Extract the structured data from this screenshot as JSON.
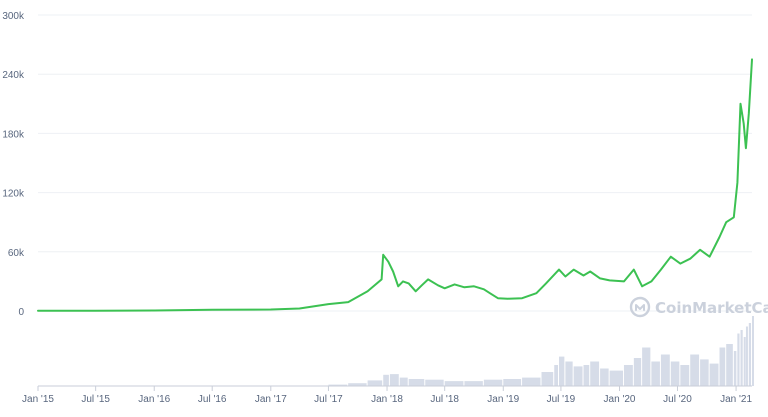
{
  "chart_data": {
    "type": "line",
    "title": "",
    "xlabel": "",
    "ylabel": "",
    "y_ticks": [
      "0",
      "60k",
      "120k",
      "180k",
      "240k",
      "300k"
    ],
    "y_tick_values": [
      0,
      60000,
      120000,
      180000,
      240000,
      300000
    ],
    "ylim": [
      0,
      300000
    ],
    "x_ticks": [
      "Jan '15",
      "Jul '15",
      "Jan '16",
      "Jul '16",
      "Jan '17",
      "Jul '17",
      "Jan '18",
      "Jul '18",
      "Jan '19",
      "Jul '19",
      "Jan '20",
      "Jul '20",
      "Jan '21"
    ],
    "x_tick_dates": [
      "2015-01-01",
      "2015-07-01",
      "2016-01-01",
      "2016-07-01",
      "2017-01-01",
      "2017-07-01",
      "2018-01-01",
      "2018-07-01",
      "2019-01-01",
      "2019-07-01",
      "2020-01-01",
      "2020-07-01",
      "2021-01-01"
    ],
    "xlim": [
      "2015-01-01",
      "2021-02-20"
    ],
    "grid": true,
    "series": [
      {
        "color": "#3cc152",
        "points": [
          [
            "2015-01-01",
            200
          ],
          [
            "2015-07-01",
            300
          ],
          [
            "2016-01-01",
            500
          ],
          [
            "2016-07-01",
            1200
          ],
          [
            "2017-01-01",
            1500
          ],
          [
            "2017-04-01",
            2500
          ],
          [
            "2017-07-01",
            7000
          ],
          [
            "2017-09-01",
            9000
          ],
          [
            "2017-11-01",
            20000
          ],
          [
            "2017-12-15",
            32000
          ],
          [
            "2017-12-20",
            57000
          ],
          [
            "2018-01-05",
            50000
          ],
          [
            "2018-01-20",
            40000
          ],
          [
            "2018-02-05",
            25000
          ],
          [
            "2018-02-20",
            30000
          ],
          [
            "2018-03-10",
            28000
          ],
          [
            "2018-04-01",
            20000
          ],
          [
            "2018-04-20",
            26000
          ],
          [
            "2018-05-10",
            32000
          ],
          [
            "2018-06-10",
            26000
          ],
          [
            "2018-07-01",
            23000
          ],
          [
            "2018-08-01",
            27000
          ],
          [
            "2018-09-01",
            24000
          ],
          [
            "2018-10-01",
            25000
          ],
          [
            "2018-11-01",
            22000
          ],
          [
            "2018-11-20",
            18000
          ],
          [
            "2018-12-15",
            13000
          ],
          [
            "2019-01-15",
            12500
          ],
          [
            "2019-03-01",
            13000
          ],
          [
            "2019-04-15",
            18000
          ],
          [
            "2019-05-15",
            28000
          ],
          [
            "2019-06-25",
            42000
          ],
          [
            "2019-07-15",
            35000
          ],
          [
            "2019-08-10",
            42000
          ],
          [
            "2019-09-10",
            36000
          ],
          [
            "2019-10-01",
            40000
          ],
          [
            "2019-11-01",
            33000
          ],
          [
            "2019-12-01",
            31000
          ],
          [
            "2020-01-15",
            30000
          ],
          [
            "2020-02-15",
            42000
          ],
          [
            "2020-03-12",
            25000
          ],
          [
            "2020-04-10",
            30000
          ],
          [
            "2020-05-10",
            42000
          ],
          [
            "2020-06-10",
            55000
          ],
          [
            "2020-07-10",
            48000
          ],
          [
            "2020-08-10",
            53000
          ],
          [
            "2020-09-10",
            62000
          ],
          [
            "2020-10-10",
            55000
          ],
          [
            "2020-11-10",
            75000
          ],
          [
            "2020-12-01",
            90000
          ],
          [
            "2020-12-25",
            95000
          ],
          [
            "2021-01-05",
            130000
          ],
          [
            "2021-01-15",
            210000
          ],
          [
            "2021-01-25",
            190000
          ],
          [
            "2021-02-01",
            165000
          ],
          [
            "2021-02-10",
            200000
          ],
          [
            "2021-02-20",
            255000
          ]
        ]
      }
    ],
    "volume": {
      "color": "#d6dce8",
      "bars": [
        [
          "2017-07-01",
          0.02
        ],
        [
          "2017-09-01",
          0.04
        ],
        [
          "2017-11-01",
          0.08
        ],
        [
          "2017-12-20",
          0.16
        ],
        [
          "2018-01-10",
          0.17
        ],
        [
          "2018-02-10",
          0.12
        ],
        [
          "2018-03-10",
          0.1
        ],
        [
          "2018-05-01",
          0.09
        ],
        [
          "2018-07-01",
          0.07
        ],
        [
          "2018-09-01",
          0.07
        ],
        [
          "2018-11-01",
          0.09
        ],
        [
          "2019-01-01",
          0.1
        ],
        [
          "2019-03-01",
          0.12
        ],
        [
          "2019-05-01",
          0.2
        ],
        [
          "2019-06-10",
          0.3
        ],
        [
          "2019-06-25",
          0.42
        ],
        [
          "2019-07-15",
          0.35
        ],
        [
          "2019-08-10",
          0.28
        ],
        [
          "2019-09-10",
          0.3
        ],
        [
          "2019-10-01",
          0.35
        ],
        [
          "2019-11-01",
          0.25
        ],
        [
          "2019-12-01",
          0.22
        ],
        [
          "2020-01-15",
          0.3
        ],
        [
          "2020-02-15",
          0.4
        ],
        [
          "2020-03-12",
          0.55
        ],
        [
          "2020-04-10",
          0.35
        ],
        [
          "2020-05-10",
          0.45
        ],
        [
          "2020-06-10",
          0.35
        ],
        [
          "2020-07-10",
          0.3
        ],
        [
          "2020-08-10",
          0.45
        ],
        [
          "2020-09-10",
          0.38
        ],
        [
          "2020-10-10",
          0.32
        ],
        [
          "2020-11-10",
          0.55
        ],
        [
          "2020-12-01",
          0.6
        ],
        [
          "2020-12-25",
          0.5
        ],
        [
          "2021-01-05",
          0.75
        ],
        [
          "2021-01-15",
          0.8
        ],
        [
          "2021-01-25",
          0.7
        ],
        [
          "2021-02-01",
          0.85
        ],
        [
          "2021-02-10",
          0.9
        ],
        [
          "2021-02-20",
          1.0
        ]
      ]
    }
  },
  "watermark": {
    "brand": "CoinMarketCap",
    "icon": "coinmarketcap-logo-icon",
    "color": "#cbd1dc"
  },
  "colors": {
    "axis_text": "#58667e",
    "grid": "#eef0f4",
    "baseline": "#c9ced8"
  }
}
